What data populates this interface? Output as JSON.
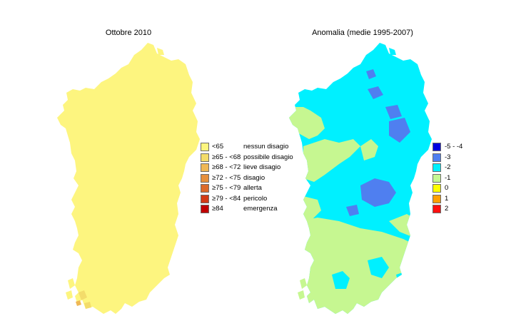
{
  "left_map": {
    "title": "Ottobre 2010",
    "fill_color": "#fdf57f",
    "legend": [
      {
        "range": "<65",
        "label": "nessun disagio",
        "color": "#fdf57f"
      },
      {
        "range": "≥65 - <68",
        "label": "possibile disagio",
        "color": "#f3dc6b"
      },
      {
        "range": "≥68 - <72",
        "label": "lieve disagio",
        "color": "#efb855"
      },
      {
        "range": "≥72 - <75",
        "label": "disagio",
        "color": "#e6903c"
      },
      {
        "range": "≥75 - <79",
        "label": "allerta",
        "color": "#dc6a2a"
      },
      {
        "range": "≥79 - <84",
        "label": "pericolo",
        "color": "#d23a15"
      },
      {
        "range": "≥84",
        "label": "emergenza",
        "color": "#c00000"
      }
    ]
  },
  "right_map": {
    "title": "Anomalia (medie 1995-2007)",
    "legend": [
      {
        "range": "-5 - -4",
        "color": "#0000e0"
      },
      {
        "range": "-3",
        "color": "#4f7ff0"
      },
      {
        "range": "-2",
        "color": "#00f0ff"
      },
      {
        "range": "-1",
        "color": "#c6f791"
      },
      {
        "range": "0",
        "color": "#ffff00"
      },
      {
        "range": "1",
        "color": "#ffa000"
      },
      {
        "range": "2",
        "color": "#ff1010"
      }
    ]
  }
}
